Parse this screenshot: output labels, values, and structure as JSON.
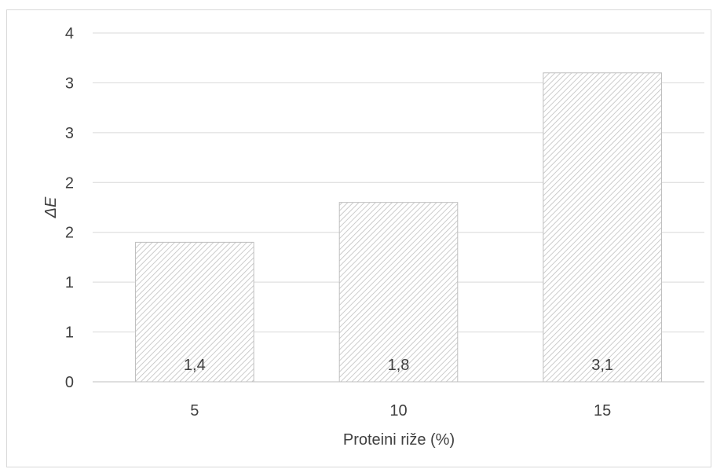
{
  "chart_data": {
    "type": "bar",
    "xlabel": "Proteini riže (%)",
    "ylabel": "ΔE",
    "categories": [
      "5",
      "10",
      "15"
    ],
    "values": [
      1.4,
      1.8,
      3.1
    ],
    "data_labels": [
      "1,4",
      "1,8",
      "3,1"
    ],
    "ylim": [
      0,
      3.5
    ],
    "y_ticks": [
      0,
      0.5,
      1,
      1.5,
      2,
      2.5,
      3,
      3.5
    ],
    "y_tick_labels": [
      "0",
      "1",
      "1",
      "2",
      "2",
      "3",
      "3",
      "4"
    ],
    "grid": true,
    "legend": "none",
    "bar_pattern": "diagonal-hatch"
  }
}
